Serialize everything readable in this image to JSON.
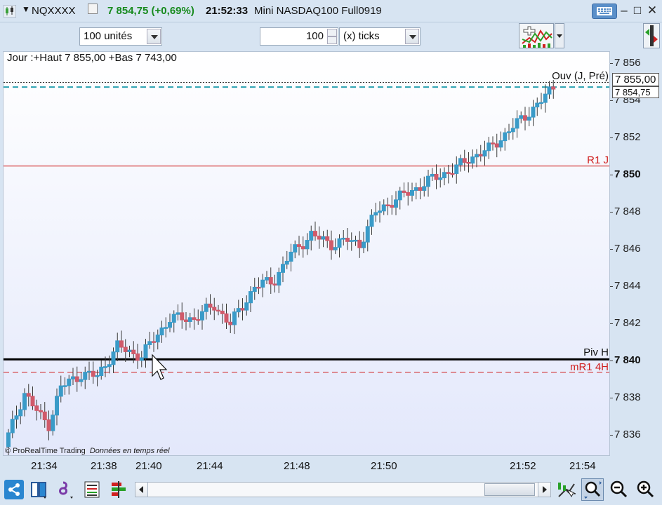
{
  "title_bar": {
    "symbol": "NQXXXX",
    "price_change": "7 854,75 (+0,69%)",
    "time": "21:52:33",
    "instrument": "Mini NASDAQ100 Full0919",
    "icons": [
      "candlestick-icon",
      "keyboard-icon",
      "minimize-icon",
      "maximize-icon",
      "close-icon"
    ],
    "minimize": "–",
    "maximize": "□",
    "close": "✕"
  },
  "toolbar": {
    "units": "100 unités",
    "quantity": "100",
    "offset_mode": "(x) ticks"
  },
  "chart": {
    "range_text": "Jour :+Haut 7 855,00 +Bas 7 743,00",
    "copyright": "© ProRealTime Trading",
    "realtime": "Données en temps réel",
    "line_labels": {
      "ouv": "Ouv (J, Pré)",
      "r1": "R1 J",
      "piv": "Piv H",
      "mr1": "mR1 4H"
    },
    "price_tags": {
      "ouv": "7 855,00",
      "last": "7 854,75"
    },
    "colors": {
      "up": "#3a9bc8",
      "down": "#d05a6a",
      "r1": "#d02020",
      "piv": "#000000",
      "ouv": "#2aa0b0"
    }
  },
  "chart_data": {
    "type": "candlestick",
    "y_ticks": [
      "7 856",
      "7 854",
      "7 852",
      "7 850",
      "7 848",
      "7 846",
      "7 844",
      "7 842",
      "7 840",
      "7 838",
      "7 836"
    ],
    "y_bold_ticks": [
      "7 850",
      "7 840"
    ],
    "x_ticks": [
      "21:34",
      "21:38",
      "21:40",
      "21:44",
      "21:48",
      "21:50",
      "21:52",
      "21:54"
    ],
    "ylim": [
      7835,
      7856.7
    ],
    "levels": {
      "ouv": 7855.0,
      "r1": 7850.5,
      "piv": 7840.1,
      "mr1": 7839.4
    },
    "last_price": 7854.75
  },
  "bottom_bar": {
    "icons": [
      "share-icon",
      "layout-icon",
      "indicators-icon",
      "drawing-list-icon",
      "bar-chart-icon",
      "cursor-mode-icon",
      "zoom-selection-icon",
      "zoom-out-icon",
      "zoom-in-icon"
    ]
  }
}
